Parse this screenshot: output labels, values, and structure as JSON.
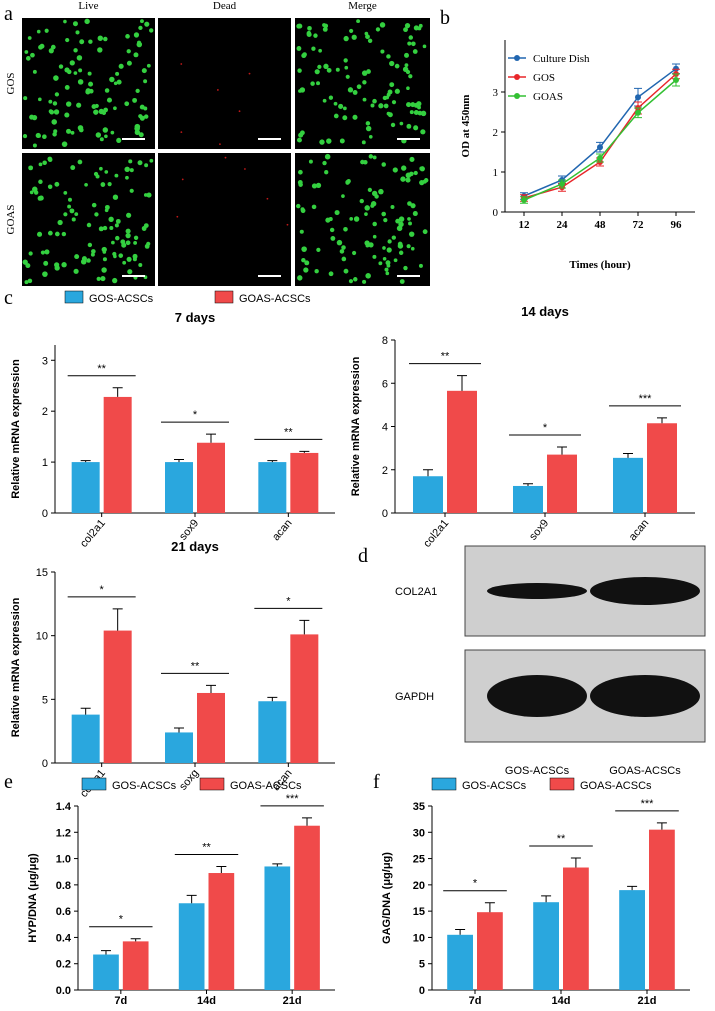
{
  "panel_labels": [
    "a",
    "b",
    "c",
    "d",
    "e",
    "f"
  ],
  "panel_a": {
    "columns": [
      "Live",
      "Dead",
      "Merge"
    ],
    "rows": [
      "GOS",
      "GOAS"
    ]
  },
  "panel_d": {
    "bands": [
      "COL2A1",
      "GAPDH"
    ],
    "lanes": [
      "GOS-ACSCs",
      "GOAS-ACSCs"
    ]
  },
  "chart_data": [
    {
      "type": "line",
      "x_label": "Times (hour)",
      "y_label": "OD at 450nm",
      "categories": [
        12,
        24,
        48,
        72,
        96
      ],
      "ylim": [
        0,
        4.3
      ],
      "yticks": [
        0,
        1,
        2,
        3
      ],
      "series": [
        {
          "name": "Culture Dish",
          "color": "#2166b0",
          "values": [
            0.4,
            0.8,
            1.62,
            2.87,
            3.58
          ],
          "errors": [
            0.08,
            0.1,
            0.12,
            0.22,
            0.12
          ]
        },
        {
          "name": "GOS",
          "color": "#e8262a",
          "values": [
            0.35,
            0.62,
            1.25,
            2.6,
            3.45
          ],
          "errors": [
            0.08,
            0.1,
            0.1,
            0.15,
            0.12
          ]
        },
        {
          "name": "GOAS",
          "color": "#33c033",
          "values": [
            0.3,
            0.7,
            1.35,
            2.48,
            3.3
          ],
          "errors": [
            0.08,
            0.1,
            0.1,
            0.12,
            0.15
          ]
        }
      ]
    },
    {
      "type": "bar",
      "title": "7 days",
      "y_label": "Relative mRNA expression",
      "categories": [
        "col2a1",
        "sox9",
        "acan"
      ],
      "ylim": [
        0,
        3.3
      ],
      "yticks": [
        0,
        1,
        2,
        3
      ],
      "annotations": [
        "**",
        "*",
        "**"
      ],
      "series": [
        {
          "name": "GOS-ACSCs",
          "color": "#2aa7de",
          "values": [
            1.0,
            1.0,
            1.0
          ],
          "errors": [
            0.03,
            0.05,
            0.03
          ]
        },
        {
          "name": "GOAS-ACSCs",
          "color": "#f04a4a",
          "values": [
            2.28,
            1.38,
            1.18
          ],
          "errors": [
            0.18,
            0.17,
            0.03
          ]
        }
      ]
    },
    {
      "type": "bar",
      "title": "14 days",
      "y_label": "Relative mRNA expression",
      "categories": [
        "col2a1",
        "sox9",
        "acan"
      ],
      "ylim": [
        0,
        8
      ],
      "yticks": [
        0,
        2,
        4,
        6,
        8
      ],
      "annotations": [
        "**",
        "*",
        "***"
      ],
      "series": [
        {
          "color": "#2aa7de",
          "values": [
            1.7,
            1.25,
            2.55
          ],
          "errors": [
            0.3,
            0.1,
            0.2
          ]
        },
        {
          "color": "#f04a4a",
          "values": [
            5.65,
            2.7,
            4.15
          ],
          "errors": [
            0.7,
            0.35,
            0.25
          ]
        }
      ]
    },
    {
      "type": "bar",
      "title": "21 days",
      "y_label": "Relative mRNA expression",
      "categories": [
        "col2a1",
        "soxg",
        "acan"
      ],
      "ylim": [
        0,
        15
      ],
      "yticks": [
        0,
        5,
        10,
        15
      ],
      "annotations": [
        "*",
        "**",
        "*"
      ],
      "series": [
        {
          "color": "#2aa7de",
          "values": [
            3.8,
            2.4,
            4.85
          ],
          "errors": [
            0.5,
            0.35,
            0.3
          ]
        },
        {
          "color": "#f04a4a",
          "values": [
            10.4,
            5.5,
            10.1
          ],
          "errors": [
            1.7,
            0.6,
            1.1
          ]
        }
      ]
    },
    {
      "type": "bar",
      "y_label": "HYP/DNA (μg/μg)",
      "categories": [
        "7d",
        "14d",
        "21d"
      ],
      "ylim": [
        0,
        1.4
      ],
      "yticks": [
        {
          "value": 0,
          "label": "0.0"
        },
        0.2,
        0.4,
        0.6,
        0.8,
        {
          "value": 1,
          "label": "1.0"
        },
        1.2,
        1.4
      ],
      "annotations": [
        "*",
        "**",
        "***"
      ],
      "series": [
        {
          "name": "GOS-ACSCs",
          "color": "#2aa7de",
          "values": [
            0.27,
            0.66,
            0.94
          ],
          "errors": [
            0.03,
            0.06,
            0.02
          ]
        },
        {
          "name": "GOAS-ACSCs",
          "color": "#f04a4a",
          "values": [
            0.37,
            0.89,
            1.25
          ],
          "errors": [
            0.02,
            0.05,
            0.06
          ]
        }
      ]
    },
    {
      "type": "bar",
      "y_label": "GAG/DNA (μg/μg)",
      "categories": [
        "7d",
        "14d",
        "21d"
      ],
      "ylim": [
        0,
        35
      ],
      "yticks": [
        0,
        5,
        10,
        15,
        20,
        25,
        30,
        35
      ],
      "annotations": [
        "*",
        "**",
        "***"
      ],
      "series": [
        {
          "name": "GOS-ACSCs",
          "color": "#2aa7de",
          "values": [
            10.5,
            16.7,
            19
          ],
          "errors": [
            1,
            1.2,
            0.7
          ]
        },
        {
          "name": "GOAS-ACSCs",
          "color": "#f04a4a",
          "values": [
            14.8,
            23.3,
            30.5
          ],
          "errors": [
            1.8,
            1.8,
            1.3
          ]
        }
      ]
    }
  ]
}
